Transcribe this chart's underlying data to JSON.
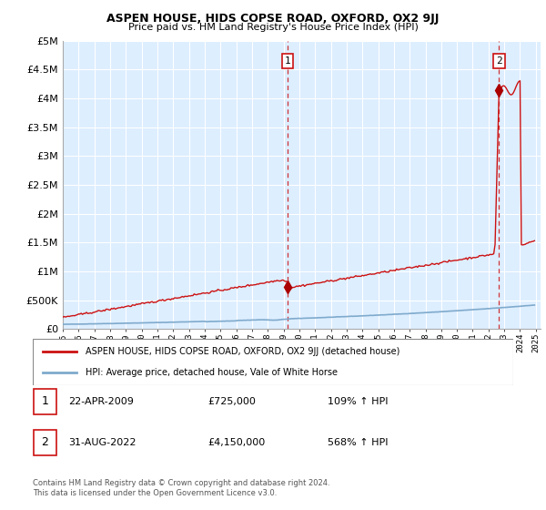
{
  "title": "ASPEN HOUSE, HIDS COPSE ROAD, OXFORD, OX2 9JJ",
  "subtitle": "Price paid vs. HM Land Registry's House Price Index (HPI)",
  "ylim": [
    0,
    5000000
  ],
  "yticks": [
    0,
    500000,
    1000000,
    1500000,
    2000000,
    2500000,
    3000000,
    3500000,
    4000000,
    4500000,
    5000000
  ],
  "ytick_labels": [
    "£0",
    "£500K",
    "£1M",
    "£1.5M",
    "£2M",
    "£2.5M",
    "£3M",
    "£3.5M",
    "£4M",
    "£4.5M",
    "£5M"
  ],
  "hpi_color": "#7faacc",
  "price_color": "#cc1111",
  "bg_color": "#ddeeff",
  "transaction1": {
    "date": "22-APR-2009",
    "price": 725000,
    "label": "1",
    "year": 2009.25
  },
  "transaction2": {
    "date": "31-AUG-2022",
    "price": 4150000,
    "label": "2",
    "year": 2022.67
  },
  "dashed_line_color": "#cc1111",
  "legend_house_label": "ASPEN HOUSE, HIDS COPSE ROAD, OXFORD, OX2 9JJ (detached house)",
  "legend_hpi_label": "HPI: Average price, detached house, Vale of White Horse",
  "footer": "Contains HM Land Registry data © Crown copyright and database right 2024.\nThis data is licensed under the Open Government Licence v3.0.",
  "table_rows": [
    [
      "1",
      "22-APR-2009",
      "£725,000",
      "109% ↑ HPI"
    ],
    [
      "2",
      "31-AUG-2022",
      "£4,150,000",
      "568% ↑ HPI"
    ]
  ]
}
